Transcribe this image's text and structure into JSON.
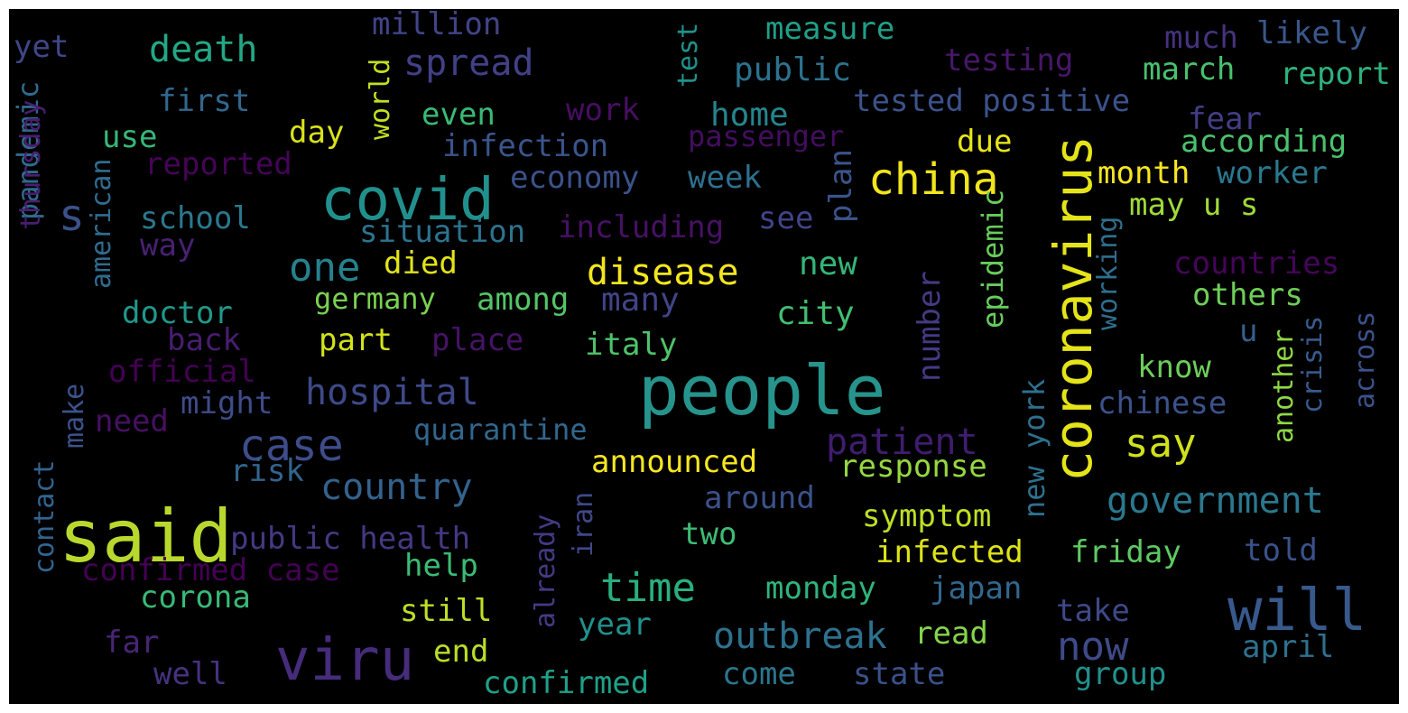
{
  "words": [
    {
      "text": "people",
      "color": "#26948c"
    },
    {
      "text": "said",
      "color": "#b8d82e"
    },
    {
      "text": "coronavirus",
      "color": "#e5e419"
    },
    {
      "text": "covid",
      "color": "#21908d"
    },
    {
      "text": "viru",
      "color": "#462c7b"
    },
    {
      "text": "will",
      "color": "#38598c"
    },
    {
      "text": "china",
      "color": "#f1e51d"
    },
    {
      "text": "case",
      "color": "#3e4c8a"
    },
    {
      "text": "s",
      "color": "#3b518b"
    },
    {
      "text": "hospital",
      "color": "#3e4989"
    },
    {
      "text": "spread",
      "color": "#424086"
    },
    {
      "text": "disease",
      "color": "#f4e61e"
    },
    {
      "text": "one",
      "color": "#26818e"
    },
    {
      "text": "government",
      "color": "#2a788e"
    },
    {
      "text": "country",
      "color": "#33628d"
    },
    {
      "text": "time",
      "color": "#29af7f"
    },
    {
      "text": "outbreak",
      "color": "#2d718e"
    },
    {
      "text": "death",
      "color": "#22a884"
    },
    {
      "text": "say",
      "color": "#d0e11c"
    },
    {
      "text": "now",
      "color": "#3e4a89"
    },
    {
      "text": "patient",
      "color": "#3f1d6f"
    },
    {
      "text": "number",
      "color": "#443a83"
    },
    {
      "text": "pandemic",
      "color": "#2f6b8e"
    },
    {
      "text": "testing",
      "color": "#481769"
    },
    {
      "text": "tested positive",
      "color": "#3b528b"
    },
    {
      "text": "many",
      "color": "#414487"
    },
    {
      "text": "infection",
      "color": "#39558c"
    },
    {
      "text": "announced",
      "color": "#f6e620"
    },
    {
      "text": "confirmed case",
      "color": "#440154"
    },
    {
      "text": "public health",
      "color": "#443983"
    },
    {
      "text": "quarantine",
      "color": "#31678e"
    },
    {
      "text": "public",
      "color": "#2c728e"
    },
    {
      "text": "home",
      "color": "#25858e"
    },
    {
      "text": "new",
      "color": "#34b679"
    },
    {
      "text": "epidemic",
      "color": "#67cc5c"
    },
    {
      "text": "new york",
      "color": "#2d708e"
    },
    {
      "text": "working",
      "color": "#2e6f8e"
    },
    {
      "text": "countries",
      "color": "#450559"
    },
    {
      "text": "month",
      "color": "#f8e621"
    },
    {
      "text": "may u s",
      "color": "#a0da39"
    },
    {
      "text": "situation",
      "color": "#2c738e"
    },
    {
      "text": "including",
      "color": "#471164"
    },
    {
      "text": "passenger",
      "color": "#440d5f"
    },
    {
      "text": "economy",
      "color": "#3b528b"
    },
    {
      "text": "week",
      "color": "#2d708e"
    },
    {
      "text": "plan",
      "color": "#3a548c"
    },
    {
      "text": "see",
      "color": "#414487"
    },
    {
      "text": "germany",
      "color": "#7ad151"
    },
    {
      "text": "among",
      "color": "#54c568"
    },
    {
      "text": "died",
      "color": "#e2e418"
    },
    {
      "text": "part",
      "color": "#d2e21b"
    },
    {
      "text": "place",
      "color": "#471365"
    },
    {
      "text": "italy",
      "color": "#4ec36b"
    },
    {
      "text": "city",
      "color": "#42be71"
    },
    {
      "text": "doctor",
      "color": "#1f988b"
    },
    {
      "text": "school",
      "color": "#2a788e"
    },
    {
      "text": "way",
      "color": "#482173"
    },
    {
      "text": "american",
      "color": "#2f6c8e"
    },
    {
      "text": "thursday",
      "color": "#481f70"
    },
    {
      "text": "official",
      "color": "#440154"
    },
    {
      "text": "back",
      "color": "#481d6f"
    },
    {
      "text": "might",
      "color": "#3e4c8a"
    },
    {
      "text": "need",
      "color": "#471063"
    },
    {
      "text": "make",
      "color": "#3b528b"
    },
    {
      "text": "contact",
      "color": "#32648e"
    },
    {
      "text": "risk",
      "color": "#32648e"
    },
    {
      "text": "corona",
      "color": "#38b977"
    },
    {
      "text": "help",
      "color": "#3bbb75"
    },
    {
      "text": "still",
      "color": "#bddf26"
    },
    {
      "text": "end",
      "color": "#bade28"
    },
    {
      "text": "far",
      "color": "#482576"
    },
    {
      "text": "well",
      "color": "#46327e"
    },
    {
      "text": "confirmed",
      "color": "#1fa088"
    },
    {
      "text": "come",
      "color": "#2a768e"
    },
    {
      "text": "state",
      "color": "#3b518b"
    },
    {
      "text": "group",
      "color": "#21918c"
    },
    {
      "text": "year",
      "color": "#21918c"
    },
    {
      "text": "read",
      "color": "#84d44b"
    },
    {
      "text": "around",
      "color": "#3b528b"
    },
    {
      "text": "two",
      "color": "#3dbc74"
    },
    {
      "text": "symptom",
      "color": "#bddf26"
    },
    {
      "text": "infected",
      "color": "#dde318"
    },
    {
      "text": "friday",
      "color": "#5ec962"
    },
    {
      "text": "told",
      "color": "#3b518b"
    },
    {
      "text": "japan",
      "color": "#31688e"
    },
    {
      "text": "monday",
      "color": "#2fb47c"
    },
    {
      "text": "take",
      "color": "#3f4889"
    },
    {
      "text": "april",
      "color": "#2d718e"
    },
    {
      "text": "response",
      "color": "#95d840"
    },
    {
      "text": "chinese",
      "color": "#3b528b"
    },
    {
      "text": "know",
      "color": "#6ccd5a"
    },
    {
      "text": "another",
      "color": "#8fd744"
    },
    {
      "text": "crisis",
      "color": "#375b8d"
    },
    {
      "text": "across",
      "color": "#3b528b"
    },
    {
      "text": "u",
      "color": "#355f8d"
    },
    {
      "text": "others",
      "color": "#6ece58"
    },
    {
      "text": "iran",
      "color": "#3f4788"
    },
    {
      "text": "already",
      "color": "#443a83"
    },
    {
      "text": "fear",
      "color": "#433e85"
    },
    {
      "text": "worker",
      "color": "#2a788e"
    },
    {
      "text": "according",
      "color": "#4ac16d"
    },
    {
      "text": "report",
      "color": "#2db27d"
    },
    {
      "text": "march",
      "color": "#48c16e"
    },
    {
      "text": "much",
      "color": "#46327e"
    },
    {
      "text": "likely",
      "color": "#38588c"
    },
    {
      "text": "measure",
      "color": "#1f9f88"
    },
    {
      "text": "million",
      "color": "#414487"
    },
    {
      "text": "test",
      "color": "#21918c"
    },
    {
      "text": "world",
      "color": "#c2df23"
    },
    {
      "text": "day",
      "color": "#d8e219"
    },
    {
      "text": "even",
      "color": "#3aba76"
    },
    {
      "text": "work",
      "color": "#470e61"
    },
    {
      "text": "first",
      "color": "#31688e"
    },
    {
      "text": "use",
      "color": "#35b779"
    },
    {
      "text": "reported",
      "color": "#450457"
    },
    {
      "text": "yet",
      "color": "#3f4788"
    },
    {
      "text": "due",
      "color": "#e7e419"
    }
  ]
}
